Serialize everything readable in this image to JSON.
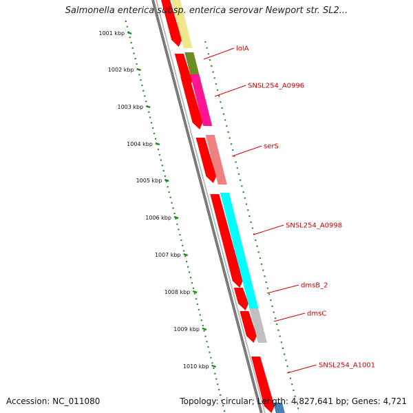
{
  "title": "Salmonella enterica subsp. enterica serovar Newport str. SL2...",
  "accession": "Accession: NC_011080",
  "summary": "Topology: circular; Length: 4,827,641 bp; Genes: 4,721",
  "ruler": {
    "labels": [
      "1001 kbp",
      "1002 kbp",
      "1003 kbp",
      "1004 kbp",
      "1005 kbp",
      "1006 kbp",
      "1007 kbp",
      "1008 kbp",
      "1009 kbp",
      "1010 kbp"
    ],
    "color": "#1a8a1a"
  },
  "colors": {
    "cds": "#ff0000",
    "backbone": "#7a7a7a",
    "label": "#d00000"
  },
  "genes": [
    {
      "name": "",
      "color": "#f0e68c"
    },
    {
      "name": "lolA",
      "color": "#6b8e23"
    },
    {
      "name": "SNSL254_A0996",
      "color": "#ff1493"
    },
    {
      "name": "serS",
      "color": "#f08080"
    },
    {
      "name": "SNSL254_A0998",
      "color": "#00ffff"
    },
    {
      "name": "dmsB_2",
      "color": "#00ffff"
    },
    {
      "name": "dmsC",
      "color": "#c0c0c0"
    },
    {
      "name": "SNSL254_A1001",
      "color": "#4682b4"
    }
  ]
}
